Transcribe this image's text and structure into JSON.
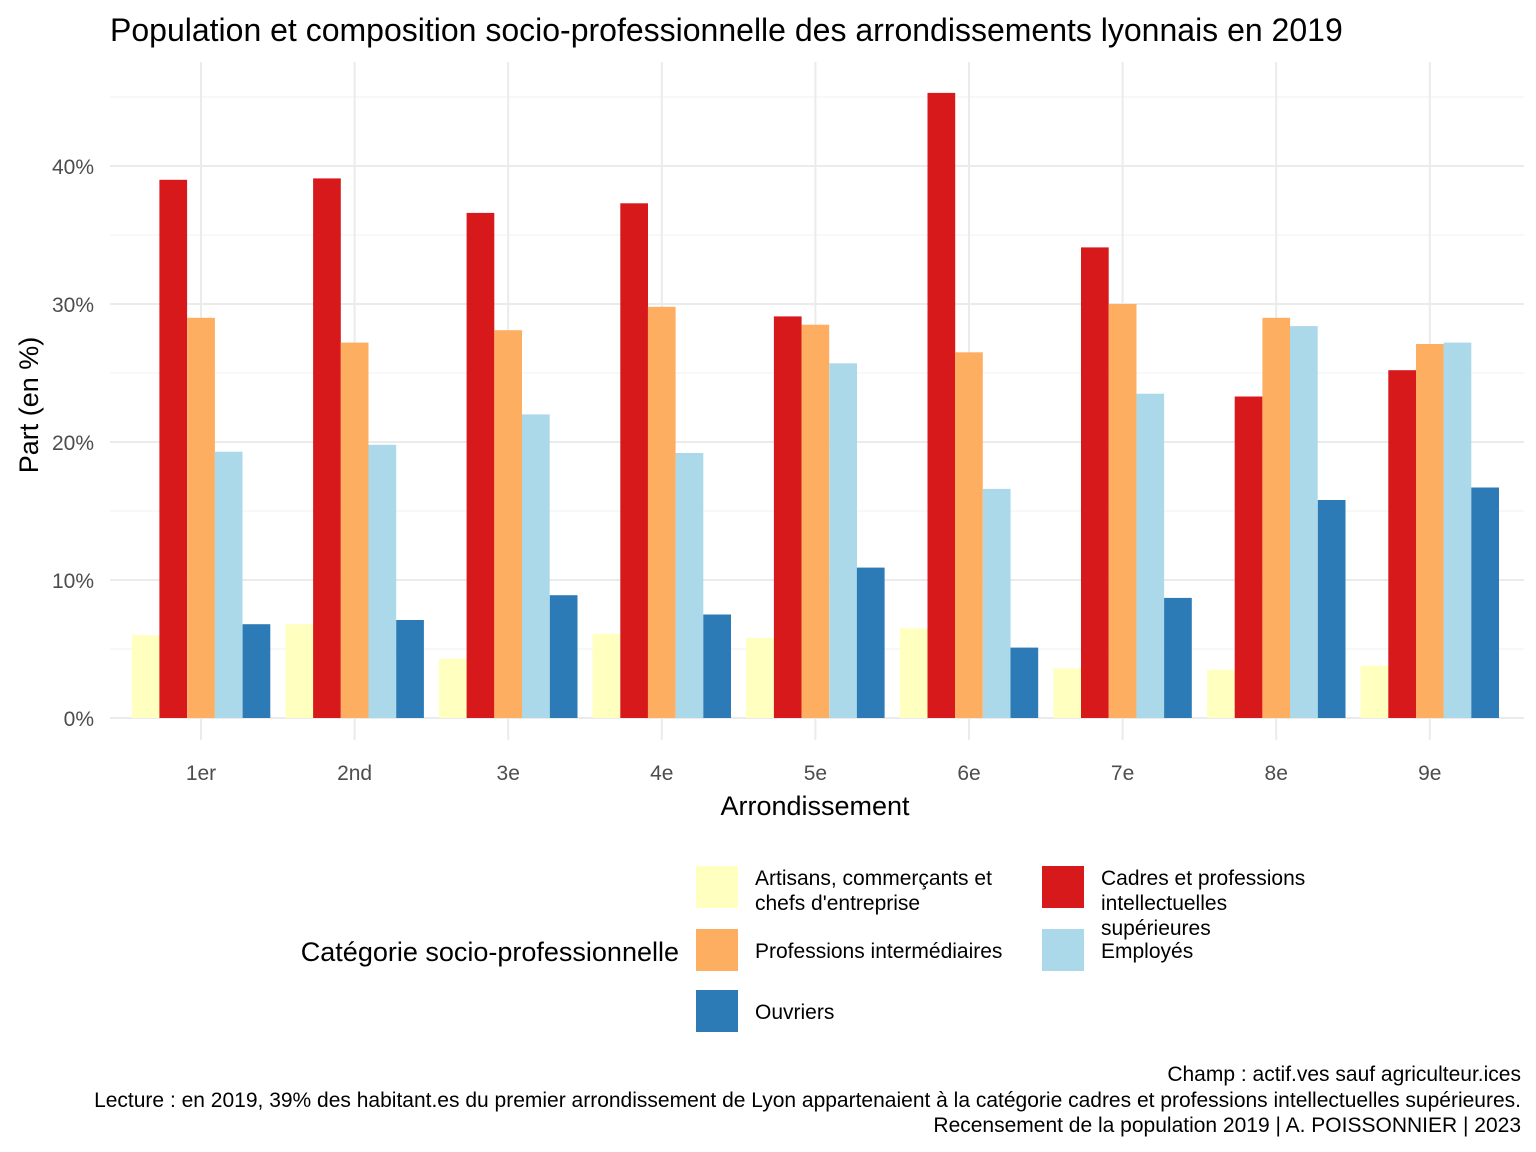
{
  "chart_data": {
    "type": "bar",
    "title": "Population et composition socio-professionnelle des arrondissements lyonnais en 2019",
    "xlabel": "Arrondissement",
    "ylabel": "Part (en %)",
    "ylim": [
      0,
      47
    ],
    "yticks": [
      0,
      10,
      20,
      30,
      40
    ],
    "ytick_labels": [
      "0%",
      "10%",
      "20%",
      "30%",
      "40%"
    ],
    "grid": true,
    "legend_position": "bottom",
    "legend_title": "Catégorie socio-professionnelle",
    "categories": [
      "1er",
      "2nd",
      "3e",
      "4e",
      "5e",
      "6e",
      "7e",
      "8e",
      "9e"
    ],
    "series": [
      {
        "name": "Artisans, commerçants et chefs d'entreprise",
        "color": "#ffffbf",
        "values": [
          6.0,
          6.8,
          4.3,
          6.1,
          5.8,
          6.5,
          3.6,
          3.5,
          3.8
        ]
      },
      {
        "name": "Cadres et professions intellectuelles supérieures",
        "color": "#d7191c",
        "values": [
          39.0,
          39.1,
          36.6,
          37.3,
          29.1,
          45.3,
          34.1,
          23.3,
          25.2
        ]
      },
      {
        "name": "Professions intermédiaires",
        "color": "#fdae61",
        "values": [
          29.0,
          27.2,
          28.1,
          29.8,
          28.5,
          26.5,
          30.0,
          29.0,
          27.1
        ]
      },
      {
        "name": "Employés",
        "color": "#abd9e9",
        "values": [
          19.3,
          19.8,
          22.0,
          19.2,
          25.7,
          16.6,
          23.5,
          28.4,
          27.2
        ]
      },
      {
        "name": "Ouvriers",
        "color": "#2c7bb6",
        "values": [
          6.8,
          7.1,
          8.9,
          7.5,
          10.9,
          5.1,
          8.7,
          15.8,
          16.7
        ]
      }
    ],
    "captions": [
      "Champ : actif.ves sauf agriculteur.ices",
      "Lecture : en 2019, 39% des habitant.es du premier arrondissement de Lyon appartenaient à la catégorie cadres et professions intellectuelles supérieures.",
      "Recensement de la population 2019 | A. POISSONNIER | 2023"
    ]
  }
}
